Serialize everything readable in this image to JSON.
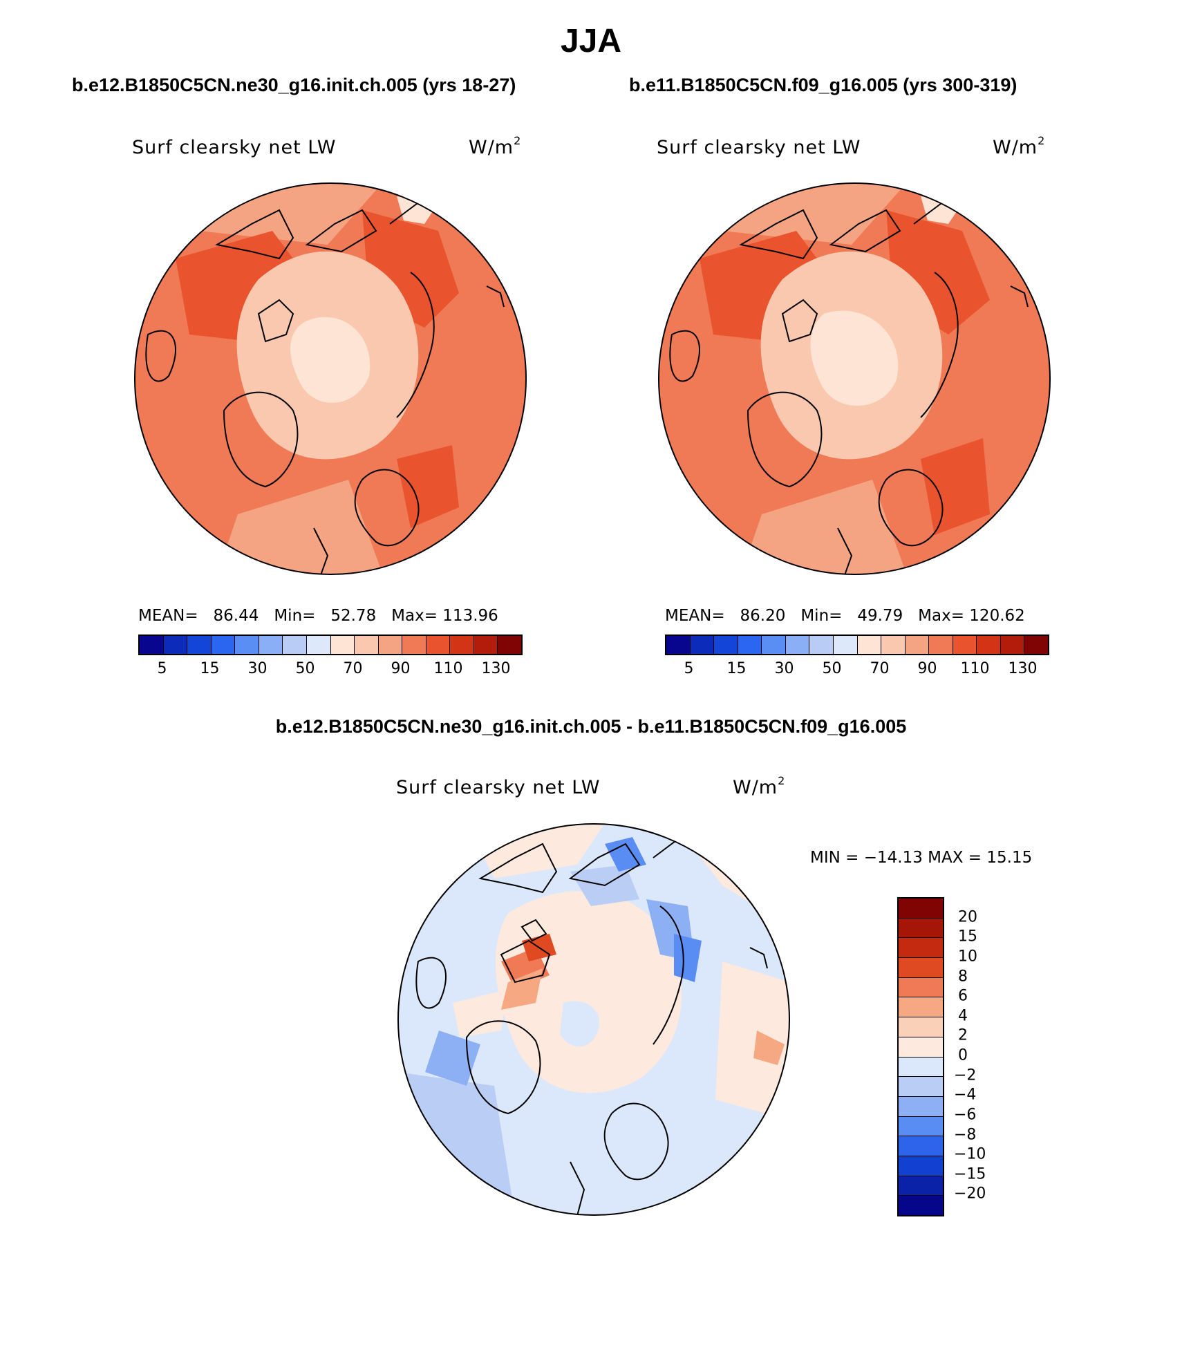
{
  "title": "JJA",
  "panels": [
    {
      "case": "b.e12.B1850C5CN.ne30_g16.init.ch.005 (yrs 18-27)",
      "variable": "Surf clearsky net LW",
      "units": "W/m",
      "units_sup": "2",
      "stats": {
        "mean_label": "MEAN=",
        "mean": "86.44",
        "min_label": "Min=",
        "min": "52.78",
        "max_label": "Max=",
        "max": "113.96"
      }
    },
    {
      "case": "b.e11.B1850C5CN.f09_g16.005 (yrs 300-319)",
      "variable": "Surf clearsky net LW",
      "units": "W/m",
      "units_sup": "2",
      "stats": {
        "mean_label": "MEAN=",
        "mean": "86.20",
        "min_label": "Min=",
        "min": "49.79",
        "max_label": "Max=",
        "max": "120.62"
      }
    }
  ],
  "colorbar": {
    "labels": [
      "5",
      "15",
      "30",
      "50",
      "70",
      "90",
      "110",
      "130"
    ],
    "colors": [
      "#08068f",
      "#0b2bb8",
      "#1345d8",
      "#2a66f0",
      "#5a8ef5",
      "#8aaff6",
      "#b8ccf5",
      "#dde8fb",
      "#fde4d4",
      "#f9c8ae",
      "#f4a482",
      "#ef7a55",
      "#e9542f",
      "#d43416",
      "#b21c0a",
      "#800404"
    ]
  },
  "diff": {
    "title": "b.e12.B1850C5CN.ne30_g16.init.ch.005 - b.e11.B1850C5CN.f09_g16.005",
    "variable": "Surf clearsky net LW",
    "units": "W/m",
    "units_sup": "2",
    "minmax": "MIN = −14.13 MAX =   15.15",
    "labels": [
      "20",
      "15",
      "10",
      "8",
      "6",
      "4",
      "2",
      "0",
      "−2",
      "−4",
      "−6",
      "−8",
      "−10",
      "−15",
      "−20"
    ],
    "colors": [
      "#800404",
      "#a51508",
      "#c42a10",
      "#e04a22",
      "#ef7a55",
      "#f6a882",
      "#fbd0b8",
      "#fde9dd",
      "#dbe7fa",
      "#b9cdf5",
      "#8daff4",
      "#5a8df3",
      "#2e64ea",
      "#1240cf",
      "#0a22a8",
      "#06068a"
    ]
  }
}
